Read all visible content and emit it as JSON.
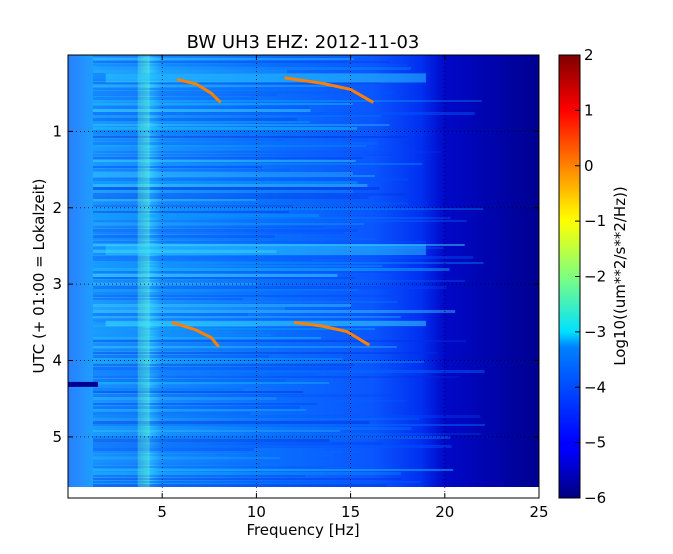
{
  "chart_data": {
    "type": "heatmap",
    "title": "BW UH3 EHZ: 2012-11-03",
    "xlabel": "Frequency [Hz]",
    "ylabel": "UTC (+ 01:00 = Lokalzeit)",
    "xlim": [
      0,
      25
    ],
    "ylim": [
      5.8,
      0
    ],
    "x_ticks": [
      5,
      10,
      15,
      20,
      25
    ],
    "x_tick_labels": [
      "5",
      "10",
      "15",
      "20",
      "25"
    ],
    "y_ticks": [
      1,
      2,
      3,
      4,
      5
    ],
    "y_tick_labels": [
      "1",
      "2",
      "3",
      "4",
      "5"
    ],
    "grid": true,
    "colormap": "jet",
    "colorbar": {
      "label": "Log10((um**2/s**2/Hz))",
      "range": [
        -6,
        2
      ],
      "ticks": [
        2,
        1,
        0,
        -1,
        -2,
        -3,
        -4,
        -5,
        -6
      ],
      "tick_labels": [
        "2",
        "1",
        "0",
        "−1",
        "−2",
        "−3",
        "−4",
        "−5",
        "−6"
      ]
    },
    "values_description_none": ""
  }
}
